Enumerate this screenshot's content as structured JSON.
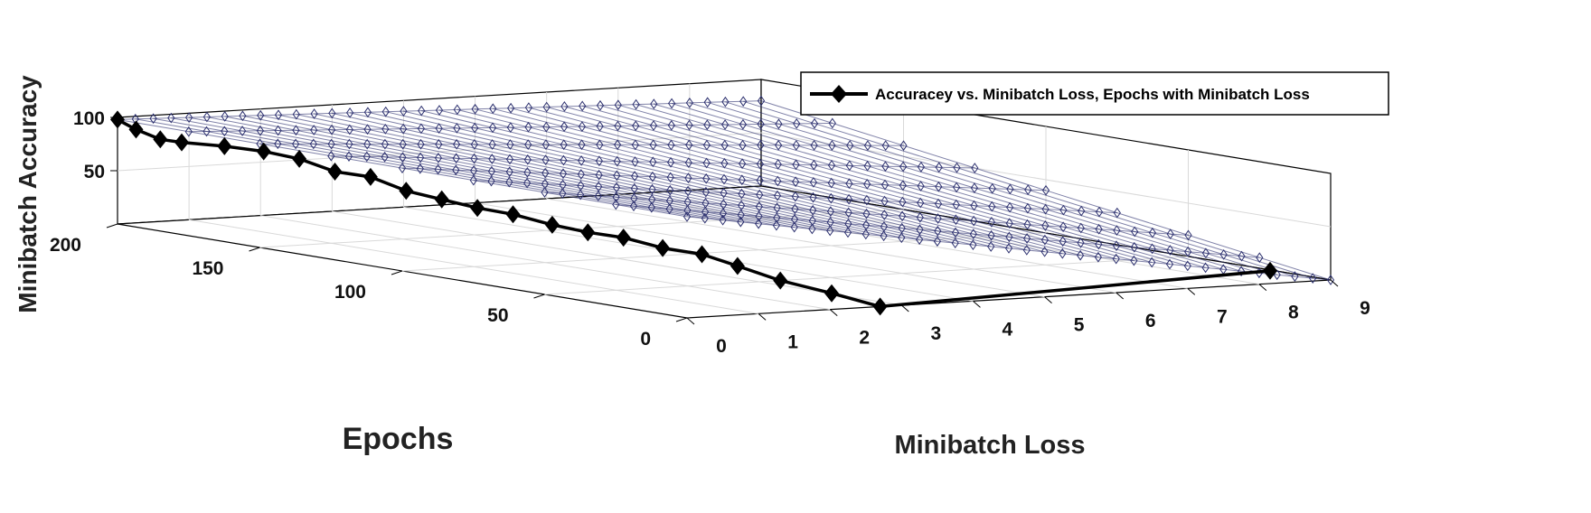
{
  "chart_data": {
    "type": "line",
    "projection": "3d",
    "title": "",
    "xlabel": "Minibatch Loss",
    "ylabel": "Epochs",
    "zlabel": "Minibatch Accuracy",
    "xlim": [
      0,
      9
    ],
    "ylim": [
      0,
      200
    ],
    "zlim": [
      0,
      100
    ],
    "x_ticks": [
      "0",
      "1",
      "2",
      "3",
      "4",
      "5",
      "6",
      "7",
      "8",
      "9"
    ],
    "y_ticks": [
      "0",
      "50",
      "100",
      "150",
      "200"
    ],
    "z_ticks": [
      "50",
      "100"
    ],
    "grid": true,
    "legend": {
      "position": "top-right",
      "entries": [
        "Accuracey vs. Minibatch Loss, Epochs with Minibatch Loss"
      ]
    },
    "series": [
      {
        "name": "Accuracey vs. Minibatch Loss, Epochs with Minibatch Loss",
        "color": "#000000",
        "marker": "diamond",
        "points": [
          {
            "x": 0.0,
            "y": 200,
            "z": 98
          },
          {
            "x": 0.1,
            "y": 196,
            "z": 90
          },
          {
            "x": 0.2,
            "y": 190,
            "z": 83
          },
          {
            "x": 0.3,
            "y": 185,
            "z": 82
          },
          {
            "x": 0.5,
            "y": 175,
            "z": 82
          },
          {
            "x": 0.65,
            "y": 165,
            "z": 81
          },
          {
            "x": 0.75,
            "y": 155,
            "z": 78
          },
          {
            "x": 0.85,
            "y": 145,
            "z": 70
          },
          {
            "x": 0.95,
            "y": 135,
            "z": 69
          },
          {
            "x": 1.05,
            "y": 125,
            "z": 60
          },
          {
            "x": 1.15,
            "y": 115,
            "z": 56
          },
          {
            "x": 1.25,
            "y": 105,
            "z": 52
          },
          {
            "x": 1.35,
            "y": 95,
            "z": 50
          },
          {
            "x": 1.5,
            "y": 85,
            "z": 44
          },
          {
            "x": 1.6,
            "y": 75,
            "z": 41
          },
          {
            "x": 1.7,
            "y": 65,
            "z": 40
          },
          {
            "x": 1.85,
            "y": 55,
            "z": 34
          },
          {
            "x": 2.0,
            "y": 45,
            "z": 32
          },
          {
            "x": 2.1,
            "y": 35,
            "z": 25
          },
          {
            "x": 2.3,
            "y": 25,
            "z": 15
          },
          {
            "x": 2.5,
            "y": 12,
            "z": 8
          },
          {
            "x": 2.7,
            "y": 0,
            "z": 0
          },
          {
            "x": 8.95,
            "y": 20,
            "z": 0
          }
        ]
      },
      {
        "name": "",
        "color": "#2b2f6e",
        "marker": "diamond",
        "surface": true,
        "grid_x": [
          0.0,
          0.25,
          0.5,
          0.75,
          1.0,
          1.25,
          1.5,
          1.75,
          2.0,
          2.25,
          2.5,
          2.75,
          3.0,
          3.25,
          3.5,
          3.75,
          4.0,
          4.25,
          4.5,
          4.75,
          5.0,
          5.25,
          5.5,
          5.75,
          6.0,
          6.25,
          6.5,
          6.75,
          7.0,
          7.25,
          7.5,
          7.75,
          8.0,
          8.25,
          8.5,
          8.75,
          9.0
        ],
        "grid_y": [
          0,
          25,
          50,
          75,
          100,
          125,
          150,
          175,
          200
        ],
        "z_corners": {
          "x0_y200": 98,
          "x0_y0": 95,
          "x9_y200": 80,
          "x9_y0": 0
        }
      }
    ]
  }
}
